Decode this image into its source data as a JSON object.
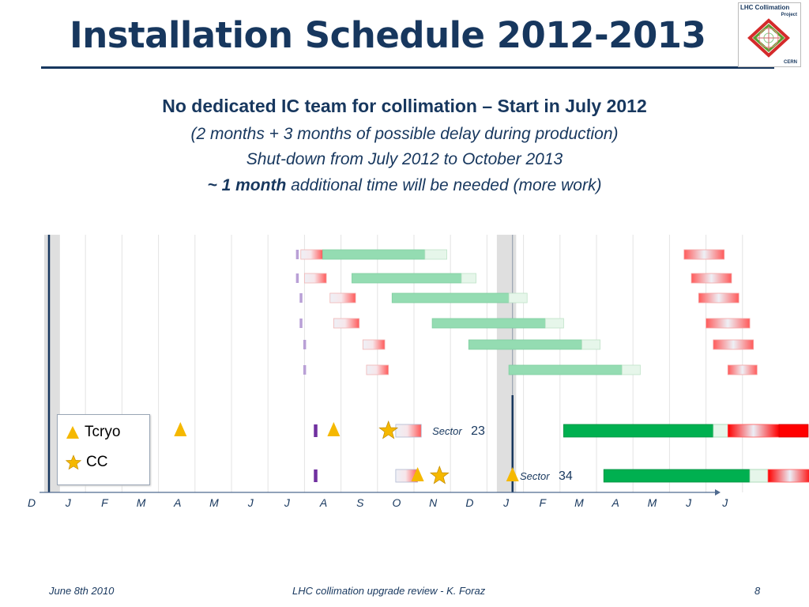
{
  "slide": {
    "title": "Installation Schedule 2012-2013",
    "subtitle_main": "No dedicated IC team for collimation – Start in July 2012",
    "subtitle_line2": "(2 months + 3 months of possible delay during production)",
    "subtitle_line3": "Shut-down from July 2012 to October 2013",
    "subtitle_line4_bold": "~ 1 month",
    "subtitle_line4_rest": " additional time will be needed (more work)",
    "page_number": "8"
  },
  "logo": {
    "line1": "LHC Collimation",
    "line2": "Project",
    "line3": "CERN",
    "colors": {
      "red": "#d42a2a",
      "green": "#5aa030"
    }
  },
  "legend": {
    "items": [
      {
        "symbol": "triangle-icon",
        "label": "Tcryo",
        "color": "#f5b800"
      },
      {
        "symbol": "star-icon",
        "label": "CC",
        "color": "#f5b800"
      }
    ]
  },
  "footer": {
    "date": "June 8th 2010",
    "event": "LHC collimation upgrade review - K. Foraz"
  },
  "chart_data": {
    "type": "gantt",
    "x_axis_months": [
      "D",
      "J",
      "F",
      "M",
      "A",
      "M",
      "J",
      "J",
      "A",
      "S",
      "O",
      "N",
      "D",
      "J",
      "F",
      "M",
      "A",
      "M",
      "J",
      "J"
    ],
    "x_axis_start": "2011-12",
    "colors": {
      "install_light": "#94dcb2",
      "install_strong": "#00b050",
      "contingency": "#e6f6ea",
      "red": "#ff5a5a",
      "red_strong": "#ff0000",
      "marker_light": "#b9a0d6",
      "marker_strong": "#7030a0",
      "shutdown_band": "#d9d9d9",
      "milestone": "#f5b800"
    },
    "rows": [
      {
        "marker": 6.8,
        "pre": [
          6.9,
          7.5
        ],
        "install": [
          7.5,
          10.3
        ],
        "contingency": [
          10.3,
          10.9
        ],
        "post": [
          17.4,
          18.5
        ]
      },
      {
        "marker": 6.8,
        "pre": [
          7.0,
          7.6
        ],
        "install": [
          8.3,
          11.3
        ],
        "contingency": [
          11.3,
          11.7
        ],
        "post": [
          17.6,
          18.7
        ]
      },
      {
        "marker": 6.9,
        "pre": [
          7.7,
          8.4
        ],
        "install": [
          9.4,
          12.6
        ],
        "contingency": [
          12.6,
          13.1
        ],
        "post": [
          17.8,
          18.9
        ]
      },
      {
        "marker": 6.9,
        "pre": [
          7.8,
          8.5
        ],
        "install": [
          10.5,
          13.6
        ],
        "contingency": [
          13.6,
          14.1
        ],
        "post": [
          18.0,
          19.2
        ]
      },
      {
        "marker": 7.0,
        "pre": [
          8.6,
          9.2
        ],
        "install": [
          11.5,
          14.6
        ],
        "contingency": [
          14.6,
          15.1
        ],
        "post": [
          18.2,
          19.3
        ]
      },
      {
        "marker": 7.0,
        "pre": [
          8.7,
          9.3
        ],
        "install": [
          12.6,
          15.7
        ],
        "contingency": [
          15.7,
          16.2
        ],
        "post": [
          18.6,
          19.4
        ]
      }
    ],
    "sectors": [
      {
        "name": "23",
        "label_prefix": "Sector",
        "label_x": 10.5,
        "marker": 7.3,
        "tcryo": [
          3.6,
          7.8
        ],
        "cc": [
          9.3
        ],
        "pre": [
          9.5,
          10.2
        ],
        "install": [
          14.1,
          18.2
        ],
        "contingency": [
          18.2,
          18.6
        ],
        "post": [
          18.6,
          20.0
        ],
        "post_strong": [
          20.0,
          20.8
        ]
      },
      {
        "name": "34",
        "label_prefix": "Sector",
        "label_x": 12.9,
        "marker": 7.3,
        "tcryo": [
          10.1,
          12.7
        ],
        "cc": [
          10.7
        ],
        "pre": [
          9.5,
          10.1
        ],
        "install": [
          15.2,
          19.2
        ],
        "contingency": [
          19.2,
          19.7
        ],
        "post": [
          19.7,
          20.9
        ],
        "post_strong": [
          20.9,
          21.6
        ]
      }
    ],
    "shutdown_bands": [
      [
        0.0,
        0.3
      ],
      [
        12.4,
        12.8
      ]
    ]
  }
}
